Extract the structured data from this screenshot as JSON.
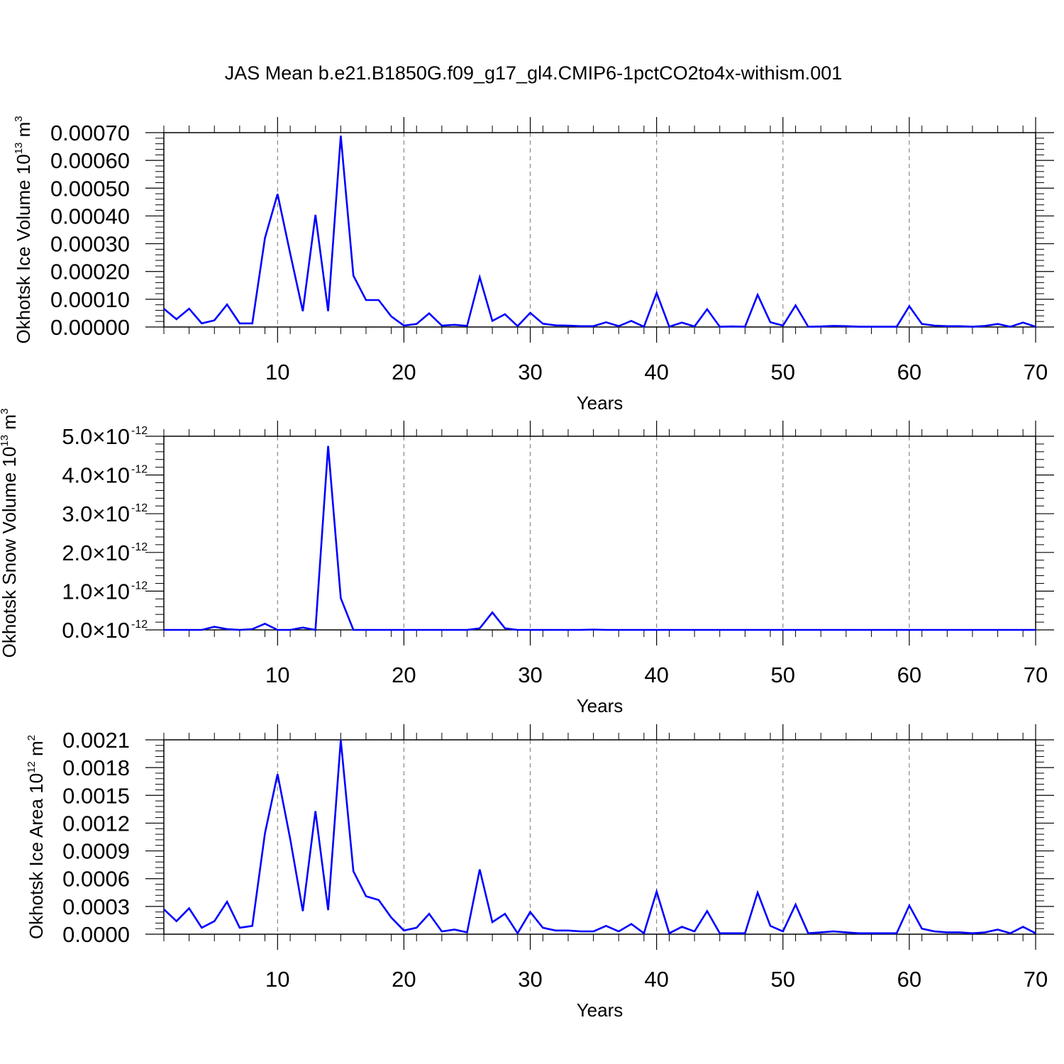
{
  "figure": {
    "title": "JAS Mean b.e21.B1850G.f09_g17_gl4.CMIP6-1pctCO2to4x-withism.001"
  },
  "chart_data": [
    {
      "type": "line",
      "title": "",
      "xlabel": "Years",
      "ylabel": "Okhotsk Ice Volume 10",
      "ylabel_sup": "13",
      "ylabel_unit": "m",
      "ylabel_unit_sup": "3",
      "xlim": [
        1,
        70
      ],
      "ylim": [
        0,
        0.0007
      ],
      "x_ticks": [
        10,
        20,
        30,
        40,
        50,
        60,
        70
      ],
      "y_ticks": [
        0,
        0.0001,
        0.0002,
        0.0003,
        0.0004,
        0.0005,
        0.0006,
        0.0007
      ],
      "y_tick_labels": [
        "0.00000",
        "0.00010",
        "0.00020",
        "0.00030",
        "0.00040",
        "0.00050",
        "0.00060",
        "0.00070"
      ],
      "y_tick_exponent": "",
      "grid": "vertical dashed at major x ticks",
      "line_color": "#0000ff",
      "series": [
        {
          "x": [
            1,
            2,
            3,
            4,
            5,
            6,
            7,
            8,
            9,
            10,
            11,
            12,
            13,
            14,
            15,
            16,
            17,
            18,
            19,
            20,
            21,
            22,
            23,
            24,
            25,
            26,
            27,
            28,
            29,
            30,
            31,
            32,
            33,
            34,
            35,
            36,
            37,
            38,
            39,
            40,
            41,
            42,
            43,
            44,
            45,
            46,
            47,
            48,
            49,
            50,
            51,
            52,
            53,
            54,
            55,
            56,
            57,
            58,
            59,
            60,
            61,
            62,
            63,
            64,
            65,
            66,
            67,
            68,
            69,
            70
          ],
          "values": [
            6.6e-05,
            2.8e-05,
            6.6e-05,
            1.3e-05,
            2.4e-05,
            8.1e-05,
            1.3e-05,
            1.3e-05,
            0.00032,
            0.000479,
            0.000265,
            5.7e-05,
            0.000404,
            5.7e-05,
            0.000689,
            0.000185,
            9.7e-05,
            9.7e-05,
            3.8e-05,
            5e-06,
            1.1e-05,
            4.9e-05,
            5e-06,
            8e-06,
            4e-06,
            0.000179,
            2.2e-05,
            4.6e-05,
            3e-06,
            5.1e-05,
            1.2e-05,
            6e-06,
            5e-06,
            3e-06,
            3e-06,
            1.7e-05,
            3e-06,
            2.2e-05,
            1e-06,
            0.000123,
            1e-06,
            1.6e-05,
            2e-06,
            6.4e-05,
            1e-06,
            2e-06,
            1e-06,
            0.000116,
            1.7e-05,
            5e-06,
            7.8e-05,
            1e-06,
            2e-06,
            4e-06,
            3e-06,
            1e-06,
            1e-06,
            1e-06,
            1e-06,
            7.5e-05,
            1.1e-05,
            5e-06,
            3e-06,
            3e-06,
            1e-06,
            4e-06,
            1.1e-05,
            1e-06,
            1.6e-05,
            1e-06
          ]
        }
      ]
    },
    {
      "type": "line",
      "title": "",
      "xlabel": "Years",
      "ylabel": "Okhotsk Snow Volume 10",
      "ylabel_sup": "13",
      "ylabel_unit": "m",
      "ylabel_unit_sup": "3",
      "xlim": [
        1,
        70
      ],
      "ylim": [
        0,
        5e-12
      ],
      "x_ticks": [
        10,
        20,
        30,
        40,
        50,
        60,
        70
      ],
      "y_ticks": [
        0,
        1e-12,
        2e-12,
        3e-12,
        4e-12,
        5e-12
      ],
      "y_tick_labels": [
        "0.0×10",
        "1.0×10",
        "2.0×10",
        "3.0×10",
        "4.0×10",
        "5.0×10"
      ],
      "y_tick_exponent": "-12",
      "grid": "vertical dashed at major x ticks",
      "line_color": "#0000ff",
      "series": [
        {
          "x": [
            1,
            2,
            3,
            4,
            5,
            6,
            7,
            8,
            9,
            10,
            11,
            12,
            13,
            14,
            15,
            16,
            17,
            18,
            19,
            20,
            21,
            22,
            23,
            24,
            25,
            26,
            27,
            28,
            29,
            30,
            31,
            32,
            33,
            34,
            35,
            36,
            37,
            38,
            39,
            40,
            41,
            42,
            43,
            44,
            45,
            46,
            47,
            48,
            49,
            50,
            51,
            52,
            53,
            54,
            55,
            56,
            57,
            58,
            59,
            60,
            61,
            62,
            63,
            64,
            65,
            66,
            67,
            68,
            69,
            70
          ],
          "values": [
            0,
            0,
            0,
            0,
            8e-14,
            2e-14,
            0,
            2e-14,
            1.6e-13,
            0,
            0,
            6e-14,
            0,
            4.75e-12,
            8.2e-13,
            0,
            0,
            0,
            0,
            0,
            0,
            0,
            0,
            0,
            0,
            4e-14,
            4.5e-13,
            4e-14,
            0,
            0,
            0,
            0,
            0,
            0,
            1e-14,
            0,
            0,
            0,
            0,
            0,
            0,
            0,
            0,
            0,
            0,
            0,
            0,
            0,
            0,
            0,
            0,
            0,
            0,
            0,
            0,
            0,
            0,
            0,
            0,
            0,
            0,
            0,
            0,
            0,
            0,
            0,
            0,
            0,
            0,
            0
          ]
        }
      ]
    },
    {
      "type": "line",
      "title": "",
      "xlabel": "Years",
      "ylabel": "Okhotsk Ice Area 10",
      "ylabel_sup": "12",
      "ylabel_unit": "m",
      "ylabel_unit_sup": "2",
      "xlim": [
        1,
        70
      ],
      "ylim": [
        0,
        0.0021
      ],
      "x_ticks": [
        10,
        20,
        30,
        40,
        50,
        60,
        70
      ],
      "y_ticks": [
        0,
        0.0003,
        0.0006,
        0.0009,
        0.0012,
        0.0015,
        0.0018,
        0.0021
      ],
      "y_tick_labels": [
        "0.0000",
        "0.0003",
        "0.0006",
        "0.0009",
        "0.0012",
        "0.0015",
        "0.0018",
        "0.0021"
      ],
      "y_tick_exponent": "",
      "grid": "vertical dashed at major x ticks",
      "line_color": "#0000ff",
      "series": [
        {
          "x": [
            1,
            2,
            3,
            4,
            5,
            6,
            7,
            8,
            9,
            10,
            11,
            12,
            13,
            14,
            15,
            16,
            17,
            18,
            19,
            20,
            21,
            22,
            23,
            24,
            25,
            26,
            27,
            28,
            29,
            30,
            31,
            32,
            33,
            34,
            35,
            36,
            37,
            38,
            39,
            40,
            41,
            42,
            43,
            44,
            45,
            46,
            47,
            48,
            49,
            50,
            51,
            52,
            53,
            54,
            55,
            56,
            57,
            58,
            59,
            60,
            61,
            62,
            63,
            64,
            65,
            66,
            67,
            68,
            69,
            70
          ],
          "values": [
            0.00027,
            0.00014,
            0.00028,
            7e-05,
            0.00014,
            0.00035,
            7e-05,
            9e-05,
            0.00109,
            0.00173,
            0.00103,
            0.00025,
            0.00133,
            0.00026,
            0.0021,
            0.00068,
            0.00041,
            0.00037,
            0.00018,
            4e-05,
            7e-05,
            0.00022,
            3e-05,
            5e-05,
            2e-05,
            0.0007,
            0.00013,
            0.00022,
            1e-05,
            0.00024,
            7e-05,
            4e-05,
            4e-05,
            3e-05,
            3e-05,
            9e-05,
            3e-05,
            0.00011,
            1e-05,
            0.00046,
            1e-05,
            8e-05,
            3e-05,
            0.00025,
            1e-05,
            1e-05,
            1e-05,
            0.00045,
            9e-05,
            3e-05,
            0.00032,
            1e-05,
            2e-05,
            3e-05,
            2e-05,
            1e-05,
            1e-05,
            1e-05,
            1e-05,
            0.00031,
            6e-05,
            3e-05,
            2e-05,
            2e-05,
            1e-05,
            2e-05,
            5e-05,
            1e-05,
            8e-05,
            1e-05
          ]
        }
      ]
    }
  ]
}
